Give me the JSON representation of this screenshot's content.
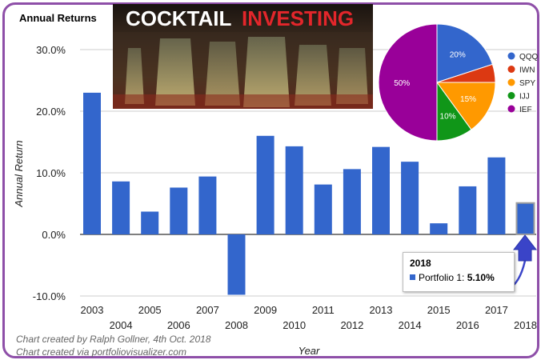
{
  "chart_data": [
    {
      "type": "bar",
      "title": "Annual Returns",
      "xlabel": "Year",
      "ylabel": "Annual Return",
      "ylim": [
        -10,
        30
      ],
      "yticks": [
        "-10.0%",
        "0.0%",
        "10.0%",
        "20.0%",
        "30.0%"
      ],
      "grid": true,
      "categories": [
        "2003",
        "2004",
        "2005",
        "2006",
        "2007",
        "2008",
        "2009",
        "2010",
        "2011",
        "2012",
        "2013",
        "2014",
        "2015",
        "2016",
        "2017",
        "2018"
      ],
      "series": [
        {
          "name": "Portfolio 1",
          "values": [
            23.0,
            8.6,
            3.7,
            7.6,
            9.4,
            -9.8,
            16.0,
            14.3,
            8.1,
            10.6,
            14.2,
            11.8,
            1.8,
            7.8,
            12.5,
            5.1
          ]
        }
      ],
      "color": "#3366cc"
    },
    {
      "type": "pie",
      "labels": [
        "QQQ",
        "IWN",
        "SPY",
        "IJJ",
        "IEF"
      ],
      "values": [
        20,
        5,
        15,
        10,
        50
      ],
      "slice_labels": [
        "20%",
        "",
        "15%",
        "10%",
        "50%"
      ],
      "colors": [
        "#3366cc",
        "#dc3912",
        "#ff9900",
        "#109618",
        "#990099"
      ],
      "legend": "right"
    }
  ],
  "banner": {
    "word1": "COCKTAIL",
    "word2": "INVESTING"
  },
  "tooltip": {
    "title": "2018",
    "series": "Portfolio 1:",
    "value": "5.10%"
  },
  "credits": [
    "Chart created by Ralph Gollner, 4th Oct. 2018",
    "Chart created via portfoliovisualizer.com"
  ]
}
